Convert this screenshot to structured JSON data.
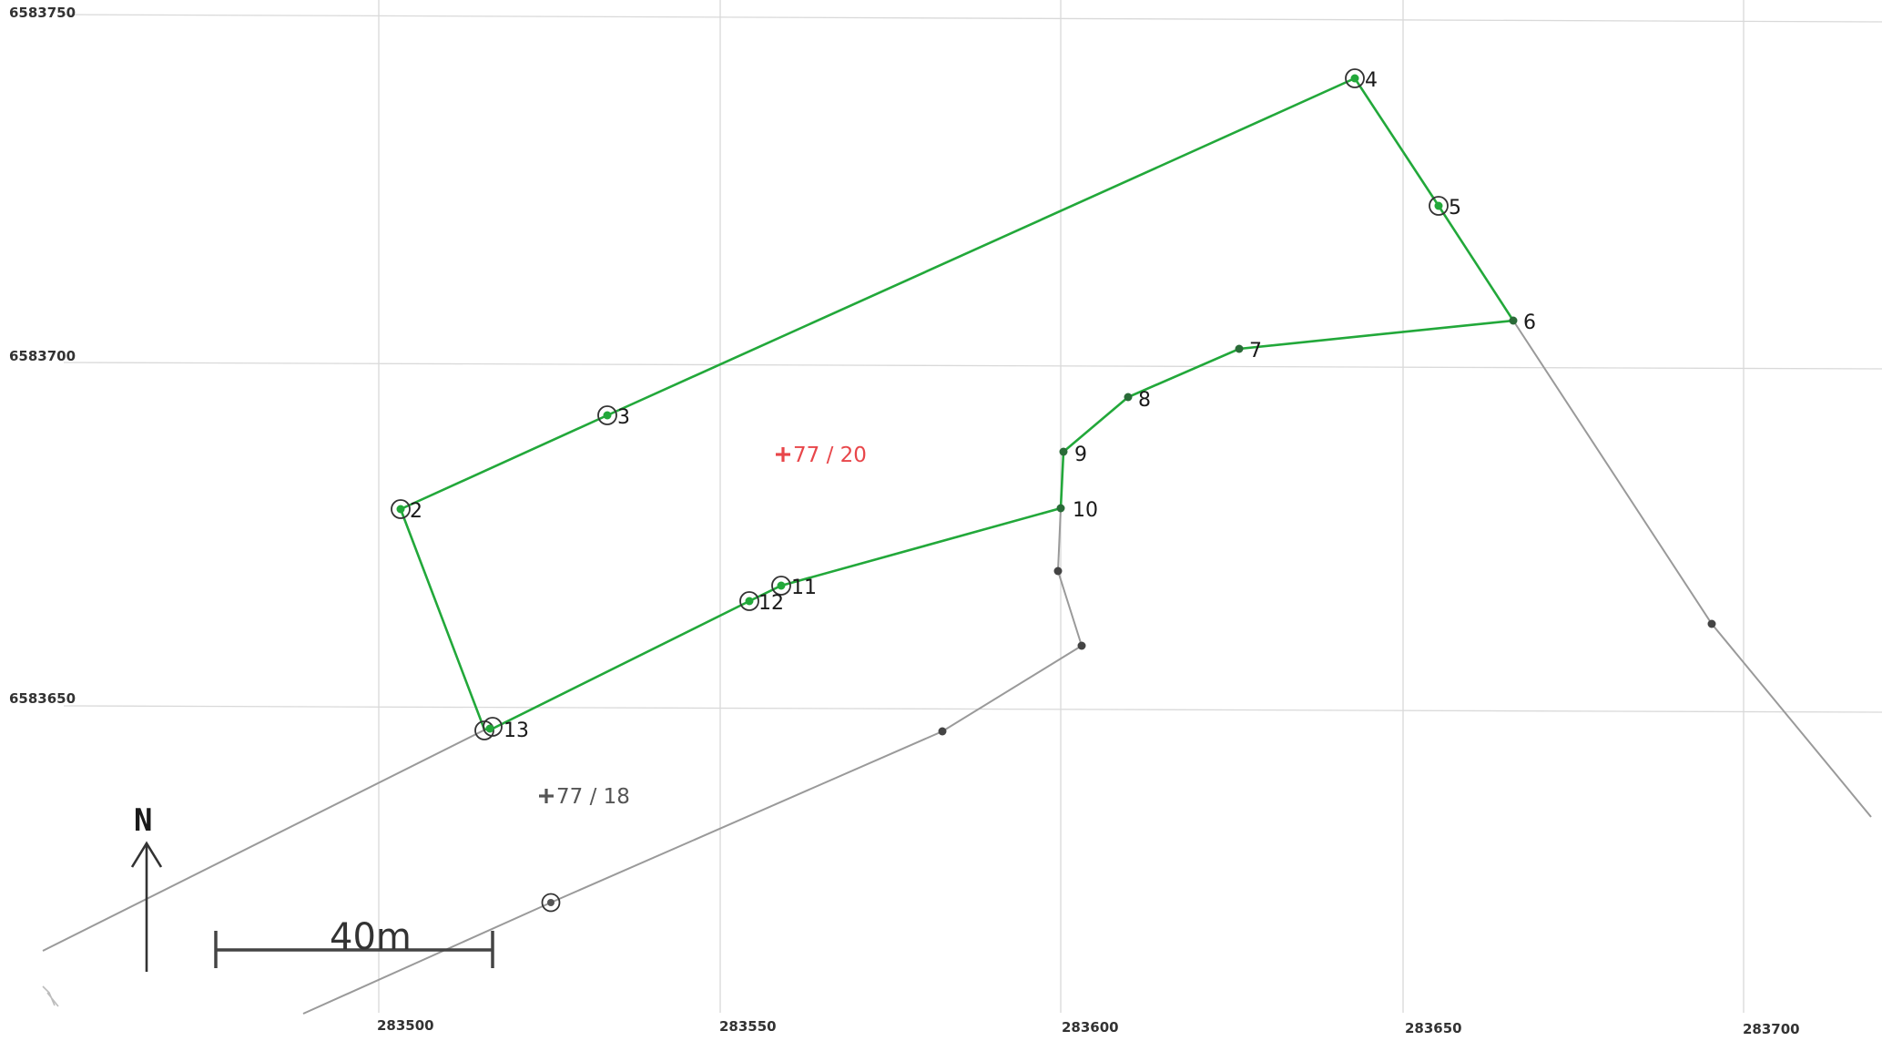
{
  "grid": {
    "northings": [
      "6583750",
      "6583700",
      "6583650"
    ],
    "eastings": [
      "283500",
      "283550",
      "283600",
      "283650",
      "283700"
    ]
  },
  "boundary_points": [
    {
      "label": "2"
    },
    {
      "label": "3"
    },
    {
      "label": "4"
    },
    {
      "label": "5"
    },
    {
      "label": "6"
    },
    {
      "label": "7"
    },
    {
      "label": "8"
    },
    {
      "label": "9"
    },
    {
      "label": "10"
    },
    {
      "label": "11"
    },
    {
      "label": "12"
    },
    {
      "label": "13"
    }
  ],
  "parcels": [
    {
      "label": "77 / 20",
      "color": "#e8464a"
    },
    {
      "label": "77 / 18",
      "color": "#555555"
    }
  ],
  "north_arrow": {
    "label": "N"
  },
  "scale_bar": {
    "label": "40m"
  },
  "colors": {
    "boundary": "#22a83a",
    "neighbour": "#9a9a9a",
    "grid": "#d9d9d9"
  }
}
